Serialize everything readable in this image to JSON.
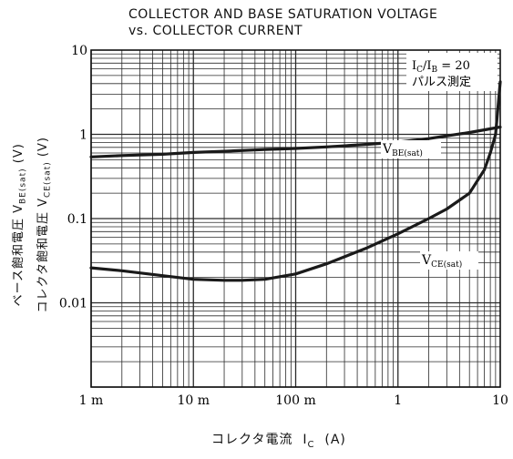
{
  "chart_data": {
    "type": "line",
    "title": "COLLECTOR AND BASE SATURATION VOLTAGE",
    "subtitle": "vs. COLLECTOR CURRENT",
    "xlabel": {
      "text": "コレクタ電流",
      "symbol": "I",
      "sub": "C",
      "unit": "(A)"
    },
    "ylabel": {
      "be": {
        "text": "ベース飽和電圧",
        "symbol": "V",
        "sub": "BE(sat)",
        "unit": "(V)"
      },
      "ce": {
        "text": "コレクタ飽和電圧",
        "symbol": "V",
        "sub": "CE(sat)",
        "unit": "(V)"
      }
    },
    "x_scale": "log",
    "y_scale": "log",
    "xlim": [
      0.001,
      10
    ],
    "ylim": [
      0.001,
      10
    ],
    "x_ticks": [
      {
        "value": 0.001,
        "label": "1 m"
      },
      {
        "value": 0.01,
        "label": "10 m"
      },
      {
        "value": 0.1,
        "label": "100 m"
      },
      {
        "value": 1,
        "label": "1"
      },
      {
        "value": 10,
        "label": "10"
      }
    ],
    "y_ticks": [
      {
        "value": 10,
        "label": "10"
      },
      {
        "value": 1,
        "label": "1"
      },
      {
        "value": 0.1,
        "label": "0.1"
      },
      {
        "value": 0.01,
        "label": "0.01"
      }
    ],
    "grid": true,
    "legend_box": {
      "line1": {
        "sym": "I",
        "sub1": "C",
        "mid": "/I",
        "sub2": "B",
        "tail": " = 20"
      },
      "line2": "パルス測定"
    },
    "series": [
      {
        "name_symbol": "V",
        "name_sub": "BE(sat)",
        "x": [
          0.001,
          0.002,
          0.005,
          0.01,
          0.02,
          0.05,
          0.1,
          0.2,
          0.5,
          1,
          2,
          5,
          10
        ],
        "y": [
          0.54,
          0.56,
          0.58,
          0.61,
          0.63,
          0.66,
          0.68,
          0.71,
          0.76,
          0.81,
          0.89,
          1.05,
          1.22
        ]
      },
      {
        "name_symbol": "V",
        "name_sub": "CE(sat)",
        "x": [
          0.001,
          0.002,
          0.005,
          0.01,
          0.02,
          0.03,
          0.05,
          0.1,
          0.2,
          0.5,
          1,
          2,
          3,
          5,
          7,
          8,
          9,
          10
        ],
        "y": [
          0.026,
          0.024,
          0.021,
          0.019,
          0.0185,
          0.0185,
          0.019,
          0.022,
          0.029,
          0.045,
          0.066,
          0.1,
          0.13,
          0.2,
          0.38,
          0.6,
          1.0,
          4.2
        ]
      }
    ],
    "colors": {
      "line": "#1a1a1a",
      "grid": "#2a2a2a"
    }
  }
}
